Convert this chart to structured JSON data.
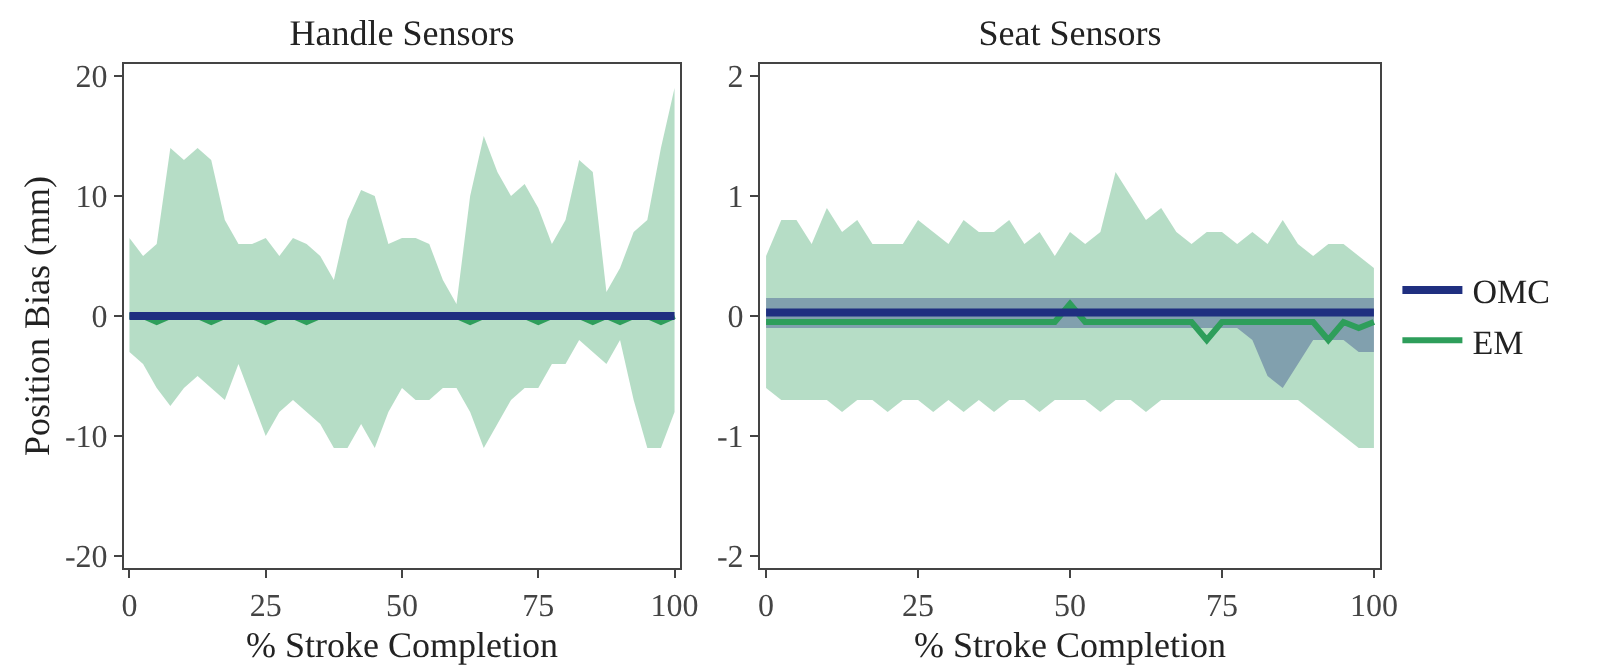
{
  "chart_data": [
    {
      "type": "line",
      "title": "Handle Sensors",
      "xlabel": "% Stroke Completion",
      "ylabel": "Position Bias (mm)",
      "x": [
        0,
        2.5,
        5,
        7.5,
        10,
        12.5,
        15,
        17.5,
        20,
        22.5,
        25,
        27.5,
        30,
        32.5,
        35,
        37.5,
        40,
        42.5,
        45,
        47.5,
        50,
        52.5,
        55,
        57.5,
        60,
        62.5,
        65,
        67.5,
        70,
        72.5,
        75,
        77.5,
        80,
        82.5,
        85,
        87.5,
        90,
        92.5,
        95,
        97.5,
        100
      ],
      "xlim": [
        -1,
        101
      ],
      "xticks": [
        0,
        25,
        50,
        75,
        100
      ],
      "ylim": [
        -21,
        21
      ],
      "yticks": [
        -20,
        -10,
        0,
        10,
        20
      ],
      "grid": false,
      "legend": false,
      "series": [
        {
          "color": "#1f2f80",
          "values": [
            0,
            0,
            0,
            0,
            0,
            0,
            0,
            0,
            0,
            0,
            0,
            0,
            0,
            0,
            0,
            0,
            0,
            0,
            0,
            0,
            0,
            0,
            0,
            0,
            0,
            0,
            0,
            0,
            0,
            0,
            0,
            0,
            0,
            0,
            0,
            0,
            0,
            0,
            0,
            0,
            0
          ]
        },
        {
          "color": "#2e9e5b",
          "values": [
            0,
            0,
            -0.5,
            0,
            0,
            0,
            -0.5,
            0,
            0,
            0,
            -0.5,
            0,
            0,
            -0.5,
            0,
            0,
            0,
            0,
            0,
            0,
            0,
            0,
            0,
            0,
            0,
            -0.5,
            0,
            0,
            0,
            0,
            -0.5,
            0,
            0,
            0,
            -0.5,
            0,
            -0.5,
            0,
            0,
            -0.5,
            0
          ],
          "upper": [
            6.5,
            5,
            6,
            14,
            13,
            14,
            13,
            8,
            6,
            6,
            6.5,
            5,
            6.5,
            6,
            5,
            3,
            8,
            10.5,
            10,
            6,
            6.5,
            6.5,
            6,
            3,
            1,
            10,
            15,
            12,
            10,
            11,
            9,
            6,
            8,
            13,
            12,
            2,
            4,
            7,
            8,
            14,
            19
          ],
          "lower": [
            -3,
            -4,
            -6,
            -7.5,
            -6,
            -5,
            -6,
            -7,
            -4,
            -7,
            -10,
            -8,
            -7,
            -8,
            -9,
            -11,
            -11,
            -9,
            -11,
            -8,
            -6,
            -7,
            -7,
            -6,
            -6,
            -8,
            -11,
            -9,
            -7,
            -6,
            -6,
            -4,
            -4,
            -2,
            -3,
            -4,
            -2,
            -7,
            -11,
            -11,
            -8
          ]
        }
      ]
    },
    {
      "type": "line",
      "title": "Seat Sensors",
      "xlabel": "% Stroke Completion",
      "x": [
        0,
        2.5,
        5,
        7.5,
        10,
        12.5,
        15,
        17.5,
        20,
        22.5,
        25,
        27.5,
        30,
        32.5,
        35,
        37.5,
        40,
        42.5,
        45,
        47.5,
        50,
        52.5,
        55,
        57.5,
        60,
        62.5,
        65,
        67.5,
        70,
        72.5,
        75,
        77.5,
        80,
        82.5,
        85,
        87.5,
        90,
        92.5,
        95,
        97.5,
        100
      ],
      "xlim": [
        -1,
        101
      ],
      "xticks": [
        0,
        25,
        50,
        75,
        100
      ],
      "ylim": [
        -2.1,
        2.1
      ],
      "yticks": [
        -2,
        -1,
        0,
        1,
        2
      ],
      "grid": false,
      "legend": "right",
      "series": [
        {
          "name": "OMC",
          "color": "#1f2f80",
          "values": [
            0.03,
            0.03,
            0.03,
            0.03,
            0.03,
            0.03,
            0.03,
            0.03,
            0.03,
            0.03,
            0.03,
            0.03,
            0.03,
            0.03,
            0.03,
            0.03,
            0.03,
            0.03,
            0.03,
            0.03,
            0.03,
            0.03,
            0.03,
            0.03,
            0.03,
            0.03,
            0.03,
            0.03,
            0.03,
            0.03,
            0.03,
            0.03,
            0.03,
            0.03,
            0.03,
            0.03,
            0.03,
            0.03,
            0.03,
            0.03,
            0.03
          ],
          "upper": [
            0.15,
            0.15,
            0.15,
            0.15,
            0.15,
            0.15,
            0.15,
            0.15,
            0.15,
            0.15,
            0.15,
            0.15,
            0.15,
            0.15,
            0.15,
            0.15,
            0.15,
            0.15,
            0.15,
            0.15,
            0.15,
            0.15,
            0.15,
            0.15,
            0.15,
            0.15,
            0.15,
            0.15,
            0.15,
            0.15,
            0.15,
            0.15,
            0.15,
            0.15,
            0.15,
            0.15,
            0.15,
            0.15,
            0.15,
            0.15,
            0.15
          ],
          "lower": [
            -0.1,
            -0.1,
            -0.1,
            -0.1,
            -0.1,
            -0.1,
            -0.1,
            -0.1,
            -0.1,
            -0.1,
            -0.1,
            -0.1,
            -0.1,
            -0.1,
            -0.1,
            -0.1,
            -0.1,
            -0.1,
            -0.1,
            -0.1,
            -0.1,
            -0.1,
            -0.1,
            -0.1,
            -0.1,
            -0.1,
            -0.1,
            -0.1,
            -0.1,
            -0.1,
            -0.1,
            -0.1,
            -0.2,
            -0.5,
            -0.6,
            -0.4,
            -0.2,
            -0.2,
            -0.2,
            -0.3,
            -0.3
          ]
        },
        {
          "name": "EM",
          "color": "#2e9e5b",
          "values": [
            -0.05,
            -0.05,
            -0.05,
            -0.05,
            -0.05,
            -0.05,
            -0.05,
            -0.05,
            -0.05,
            -0.05,
            -0.05,
            -0.05,
            -0.05,
            -0.05,
            -0.05,
            -0.05,
            -0.05,
            -0.05,
            -0.05,
            -0.05,
            0.1,
            -0.05,
            -0.05,
            -0.05,
            -0.05,
            -0.05,
            -0.05,
            -0.05,
            -0.05,
            -0.2,
            -0.05,
            -0.05,
            -0.05,
            -0.05,
            -0.05,
            -0.05,
            -0.05,
            -0.2,
            -0.05,
            -0.1,
            -0.05
          ],
          "upper": [
            0.5,
            0.8,
            0.8,
            0.6,
            0.9,
            0.7,
            0.8,
            0.6,
            0.6,
            0.6,
            0.8,
            0.7,
            0.6,
            0.8,
            0.7,
            0.7,
            0.8,
            0.6,
            0.7,
            0.5,
            0.7,
            0.6,
            0.7,
            1.2,
            1.0,
            0.8,
            0.9,
            0.7,
            0.6,
            0.7,
            0.7,
            0.6,
            0.7,
            0.6,
            0.8,
            0.6,
            0.5,
            0.6,
            0.6,
            0.5,
            0.4
          ],
          "lower": [
            -0.6,
            -0.7,
            -0.7,
            -0.7,
            -0.7,
            -0.8,
            -0.7,
            -0.7,
            -0.8,
            -0.7,
            -0.7,
            -0.8,
            -0.7,
            -0.8,
            -0.7,
            -0.8,
            -0.7,
            -0.7,
            -0.8,
            -0.7,
            -0.7,
            -0.7,
            -0.8,
            -0.7,
            -0.7,
            -0.8,
            -0.7,
            -0.7,
            -0.7,
            -0.7,
            -0.7,
            -0.7,
            -0.7,
            -0.7,
            -0.7,
            -0.7,
            -0.8,
            -0.9,
            -1.0,
            -1.1,
            -1.1
          ]
        }
      ]
    }
  ]
}
